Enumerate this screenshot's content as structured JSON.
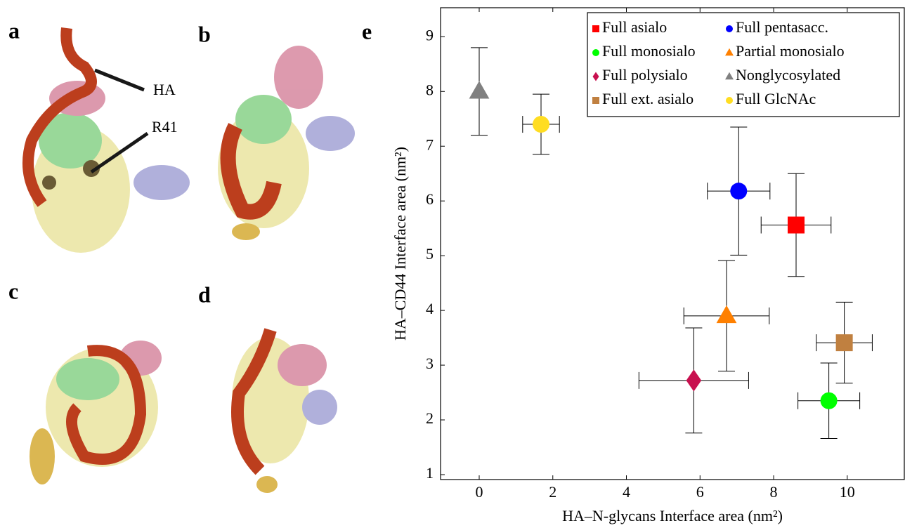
{
  "panels": {
    "a": "a",
    "b": "b",
    "c": "c",
    "d": "d",
    "e": "e"
  },
  "annotations": {
    "ha": "HA",
    "r41": "R41"
  },
  "chart_data": {
    "type": "scatter",
    "xlabel": "HA–N-glycans Interface area (nm²)",
    "ylabel": "HA–CD44 Interface area (nm²)",
    "xlim": [
      -1.05,
      11.55
    ],
    "ylim": [
      0.91,
      9.53
    ],
    "xticks": [
      0,
      2,
      4,
      6,
      8,
      10
    ],
    "yticks": [
      1,
      2,
      3,
      4,
      5,
      6,
      7,
      8,
      9
    ],
    "grid": false,
    "legend": "upper right",
    "series": [
      {
        "name": "Full asialo",
        "color": "#ff0000",
        "marker": "square",
        "x": [
          8.61
        ],
        "values": [
          5.56
        ],
        "xerr": [
          0.95
        ],
        "yerr": [
          0.94
        ]
      },
      {
        "name": "Full pentasacc.",
        "color": "#0000ff",
        "marker": "circle",
        "x": [
          7.05
        ],
        "values": [
          6.18
        ],
        "xerr": [
          0.85
        ],
        "yerr": [
          1.17
        ]
      },
      {
        "name": "Full monosialo",
        "color": "#00ff00",
        "marker": "circle",
        "x": [
          9.5
        ],
        "values": [
          2.35
        ],
        "xerr": [
          0.84
        ],
        "yerr": [
          0.69
        ]
      },
      {
        "name": "Partial monosialo",
        "color": "#ff8000",
        "marker": "triangle",
        "x": [
          6.72
        ],
        "values": [
          3.9
        ],
        "xerr": [
          1.16
        ],
        "yerr": [
          1.01
        ]
      },
      {
        "name": "Full polysialo",
        "color": "#c8104f",
        "marker": "diamond",
        "x": [
          5.83
        ],
        "values": [
          2.72
        ],
        "xerr": [
          1.49
        ],
        "yerr": [
          0.96
        ]
      },
      {
        "name": "Nonglycosylated",
        "color": "#808080",
        "marker": "triangle",
        "x": [
          0
        ],
        "values": [
          8.0
        ],
        "yerr": [
          0.8
        ]
      },
      {
        "name": "Full ext. asialo",
        "color": "#c08040",
        "marker": "square",
        "x": [
          9.92
        ],
        "values": [
          3.41
        ],
        "xerr": [
          0.76
        ],
        "yerr": [
          0.74
        ]
      },
      {
        "name": "Full GlcNAc",
        "color": "#ffdd22",
        "marker": "circle",
        "x": [
          1.68
        ],
        "values": [
          7.4
        ],
        "xerr": [
          0.5
        ],
        "yerr": [
          0.55
        ]
      }
    ]
  }
}
